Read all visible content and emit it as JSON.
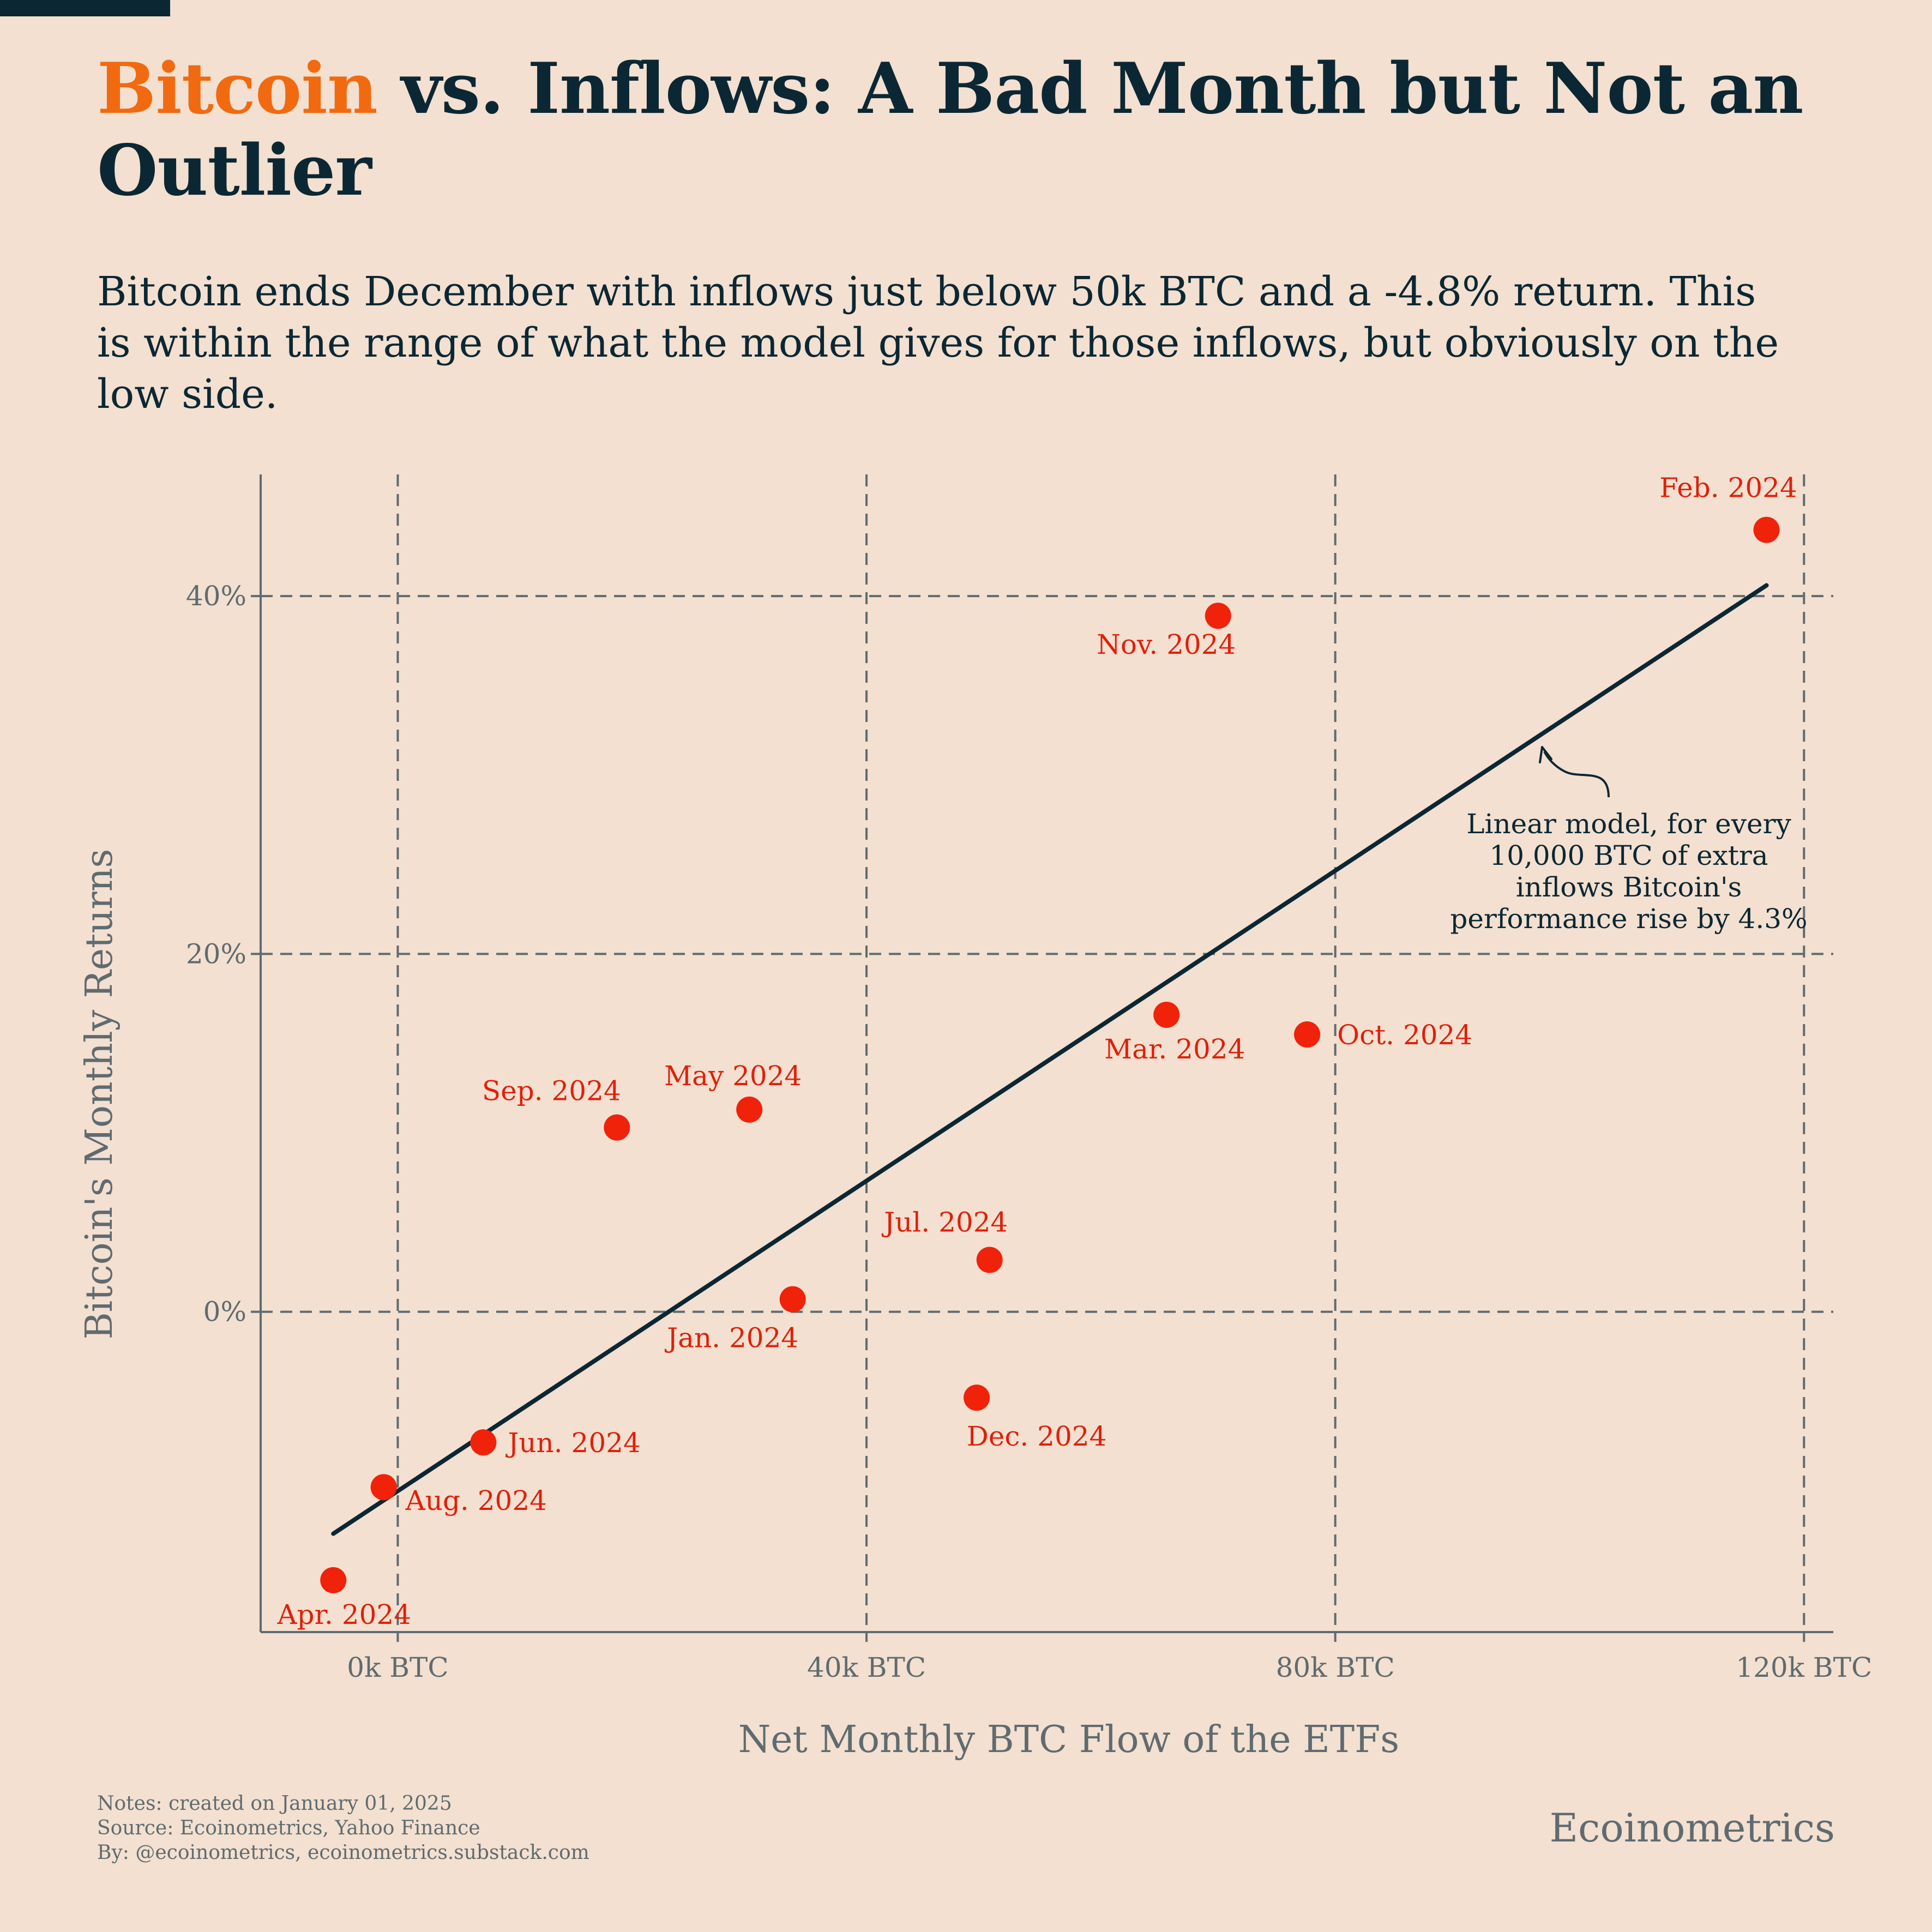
{
  "header": {
    "title_accent": "Bitcoin",
    "title_rest": " vs. Inflows: A Bad Month but Not an Outlier",
    "subtitle": "Bitcoin ends December with inflows just below 50k BTC and a -4.8% return. This is within the range of what the model gives for those inflows, but obviously on the low side."
  },
  "colors": {
    "background": "#f3e0d0",
    "accent": "#f26a10",
    "title": "#0b2734",
    "points": "#f0220a",
    "labels": "#e0200a",
    "regression_line": "#0b2734",
    "grid": "#5f6b70"
  },
  "chart_data": {
    "type": "scatter",
    "xlabel": "Net Monthly BTC Flow of the ETFs",
    "ylabel": "Bitcoin's Monthly Returns",
    "xlim": [
      -11700,
      122500
    ],
    "ylim": [
      -17.9,
      46.8
    ],
    "xticks": [
      {
        "value": 0,
        "label": "0k BTC"
      },
      {
        "value": 40000,
        "label": "40k BTC"
      },
      {
        "value": 80000,
        "label": "80k BTC"
      },
      {
        "value": 120000,
        "label": "120k BTC"
      }
    ],
    "yticks": [
      {
        "value": 0,
        "label": "0%"
      },
      {
        "value": 20,
        "label": "20%"
      },
      {
        "value": 40,
        "label": "40%"
      }
    ],
    "grid": true,
    "points": [
      {
        "label": "Jan. 2024",
        "x": 33700,
        "y": 0.7
      },
      {
        "label": "Feb. 2024",
        "x": 116800,
        "y": 43.7
      },
      {
        "label": "Mar. 2024",
        "x": 65600,
        "y": 16.6
      },
      {
        "label": "Apr. 2024",
        "x": -5500,
        "y": -15.0
      },
      {
        "label": "May 2024",
        "x": 30000,
        "y": 11.3
      },
      {
        "label": "Jun. 2024",
        "x": 7300,
        "y": -7.3
      },
      {
        "label": "Jul. 2024",
        "x": 50500,
        "y": 2.9
      },
      {
        "label": "Aug. 2024",
        "x": -1200,
        "y": -9.8
      },
      {
        "label": "Sep. 2024",
        "x": 18700,
        "y": 10.3
      },
      {
        "label": "Oct. 2024",
        "x": 77600,
        "y": 15.5
      },
      {
        "label": "Nov. 2024",
        "x": 70000,
        "y": 38.9
      },
      {
        "label": "Dec. 2024",
        "x": 49400,
        "y": -4.8
      }
    ],
    "regression_line": {
      "x": [
        -5500,
        116800
      ],
      "y": [
        -12.4,
        40.6
      ]
    },
    "annotation": "Linear model, for every 10,000 BTC of extra inflows Bitcoin's performance rise by 4.3%"
  },
  "footer": {
    "notes": "Notes: created on January 01, 2025",
    "source": "Source: Ecoinometrics, Yahoo Finance",
    "by": "By: @ecoinometrics, ecoinometrics.substack.com",
    "brand": "Ecoinometrics"
  }
}
